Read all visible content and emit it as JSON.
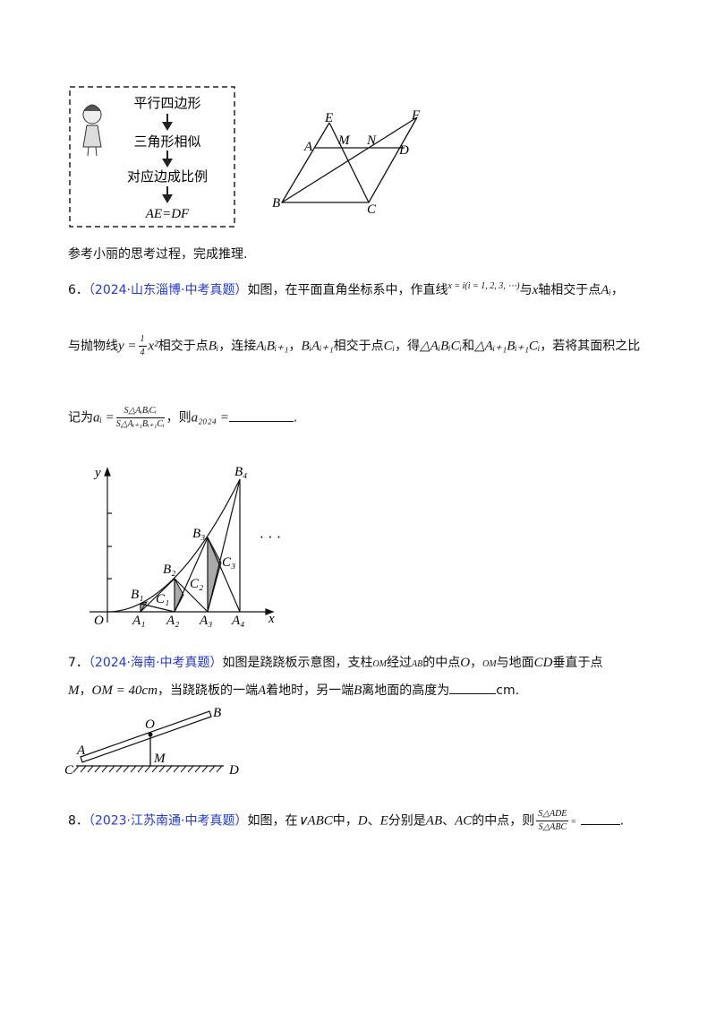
{
  "flowchart": {
    "steps": [
      "平行四边形",
      "三角形相似",
      "对应边成比例",
      "AE=DF"
    ]
  },
  "figure1": {
    "E": "E",
    "F": "F",
    "A": "A",
    "M": "M",
    "N": "N",
    "D": "D",
    "B": "B",
    "C": "C"
  },
  "note": "参考小丽的思考过程，完成推理.",
  "problem6": {
    "number": "6．",
    "source": "（2024·山东淄博·中考真题）",
    "line1": [
      "如图，在平面直角坐标系中，作直线",
      "x = i(i = 1, 2, 3, ⋯)",
      "与",
      "x",
      "轴相交于点",
      "Aᵢ",
      "，"
    ],
    "line2": [
      "与抛物线",
      "y =",
      "1",
      "4",
      "x²",
      "相交于点",
      "Bᵢ",
      "，连接",
      "AᵢBᵢ₊₁",
      "，",
      "BᵢAᵢ₊₁",
      "相交于点",
      "Cᵢ",
      "，得",
      "△AᵢBᵢCᵢ",
      "和",
      "△Aᵢ₊₁Bᵢ₊₁Cᵢ",
      "，若将其面积之比"
    ],
    "line3": [
      "记为",
      "aᵢ =",
      "S△AᵢBᵢCᵢ",
      "S△Aᵢ₊₁Bᵢ₊₁Cᵢ",
      "，则",
      "a₂₀₂₄ =",
      "."
    ]
  },
  "figure2": {
    "y": "y",
    "x": "x",
    "O": "O",
    "A1": "A₁",
    "A2": "A₂",
    "A3": "A₃",
    "A4": "A₄",
    "B1": "B₁",
    "B2": "B₂",
    "B3": "B₃",
    "B4": "B₄",
    "C1": "C₁",
    "C2": "C₂",
    "C3": "C₃",
    "dots": "· · ·"
  },
  "problem7": {
    "number": "7．",
    "source": "（2024·海南·中考真题）",
    "line1": [
      "如图是跷跷板示意图，支柱",
      "OM",
      "经过",
      "AB",
      "的中点",
      "O",
      "，",
      "OM",
      "与地面",
      "CD",
      "垂直于点"
    ],
    "line2": [
      "M",
      "，",
      "OM = 40cm",
      "，当跷跷板的一端",
      "A",
      "着地时，另一端",
      "B",
      "离地面的高度为",
      "cm",
      "."
    ]
  },
  "figure3": {
    "B": "B",
    "O": "O",
    "A": "A",
    "C": "C",
    "M": "M",
    "D": "D"
  },
  "problem8": {
    "number": "8．",
    "source": "（2023·江苏南通·中考真题）",
    "line1": [
      "如图，在",
      "∨ABC",
      "中，",
      "D",
      "、",
      "E",
      "分别是",
      "AB",
      "、",
      "AC",
      "的中点，则",
      "S△ADE",
      "S△ABC",
      "=",
      "."
    ]
  }
}
